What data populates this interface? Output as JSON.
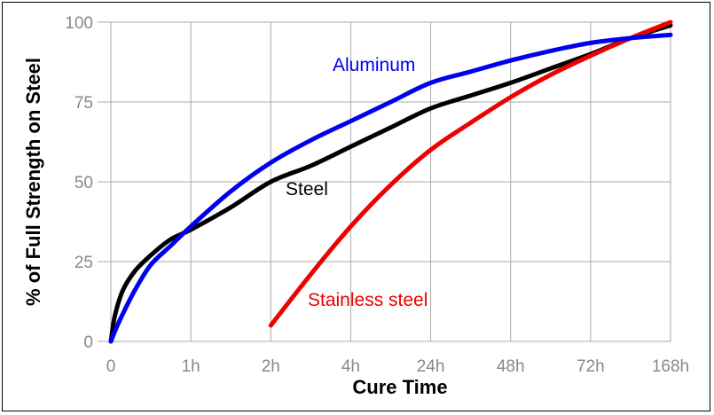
{
  "chart_data": {
    "type": "line",
    "title": "",
    "xlabel": "Cure Time",
    "ylabel": "% of Full Strength on Steel",
    "x_categories": [
      "0",
      "1h",
      "2h",
      "4h",
      "24h",
      "48h",
      "72h",
      "168h"
    ],
    "yticks": [
      "0",
      "25",
      "50",
      "75",
      "100"
    ],
    "ylim": [
      0,
      100
    ],
    "grid": true,
    "series": [
      {
        "name": "Steel",
        "color": "#000000",
        "points": [
          [
            0,
            0
          ],
          [
            0.05,
            8
          ],
          [
            0.15,
            16
          ],
          [
            0.3,
            22
          ],
          [
            0.5,
            27
          ],
          [
            0.75,
            32
          ],
          [
            1,
            35
          ],
          [
            1.5,
            42
          ],
          [
            2,
            50
          ],
          [
            2.5,
            55
          ],
          [
            3,
            61
          ],
          [
            3.5,
            67
          ],
          [
            4,
            73
          ],
          [
            4.5,
            77
          ],
          [
            5,
            81
          ],
          [
            5.5,
            85.5
          ],
          [
            6,
            90
          ],
          [
            6.5,
            95
          ],
          [
            7,
            99
          ]
        ]
      },
      {
        "name": "Aluminum",
        "color": "#0000ee",
        "points": [
          [
            0,
            0
          ],
          [
            0.1,
            6
          ],
          [
            0.3,
            16
          ],
          [
            0.5,
            24
          ],
          [
            0.75,
            30
          ],
          [
            1,
            36
          ],
          [
            1.5,
            47
          ],
          [
            2,
            56
          ],
          [
            2.5,
            63
          ],
          [
            3,
            69
          ],
          [
            3.5,
            75
          ],
          [
            4,
            81
          ],
          [
            4.5,
            84.5
          ],
          [
            5,
            88
          ],
          [
            5.5,
            91
          ],
          [
            6,
            93.5
          ],
          [
            6.5,
            95
          ],
          [
            7,
            96
          ]
        ]
      },
      {
        "name": "Stainless steel",
        "color": "#ee0000",
        "points": [
          [
            2,
            5
          ],
          [
            2.5,
            21
          ],
          [
            3,
            36
          ],
          [
            3.5,
            49
          ],
          [
            4,
            60
          ],
          [
            4.5,
            68.5
          ],
          [
            5,
            76.5
          ],
          [
            5.5,
            83.5
          ],
          [
            6,
            89.5
          ],
          [
            6.5,
            95
          ],
          [
            7,
            100
          ]
        ]
      }
    ]
  }
}
